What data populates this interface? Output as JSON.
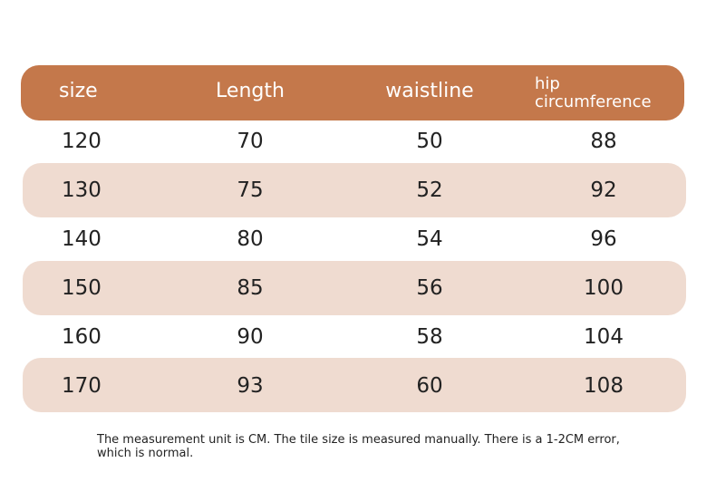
{
  "table": {
    "header": [
      "size",
      "Length",
      "waistline",
      "hip circumference"
    ],
    "rows": [
      [
        "120",
        "70",
        "50",
        "88"
      ],
      [
        "130",
        "75",
        "52",
        "92"
      ],
      [
        "140",
        "80",
        "54",
        "96"
      ],
      [
        "150",
        "85",
        "56",
        "100"
      ],
      [
        "160",
        "90",
        "58",
        "104"
      ],
      [
        "170",
        "93",
        "60",
        "108"
      ]
    ]
  },
  "note": "The measurement unit is CM. The tile size is measured manually. There is a 1-2CM error, which is normal."
}
